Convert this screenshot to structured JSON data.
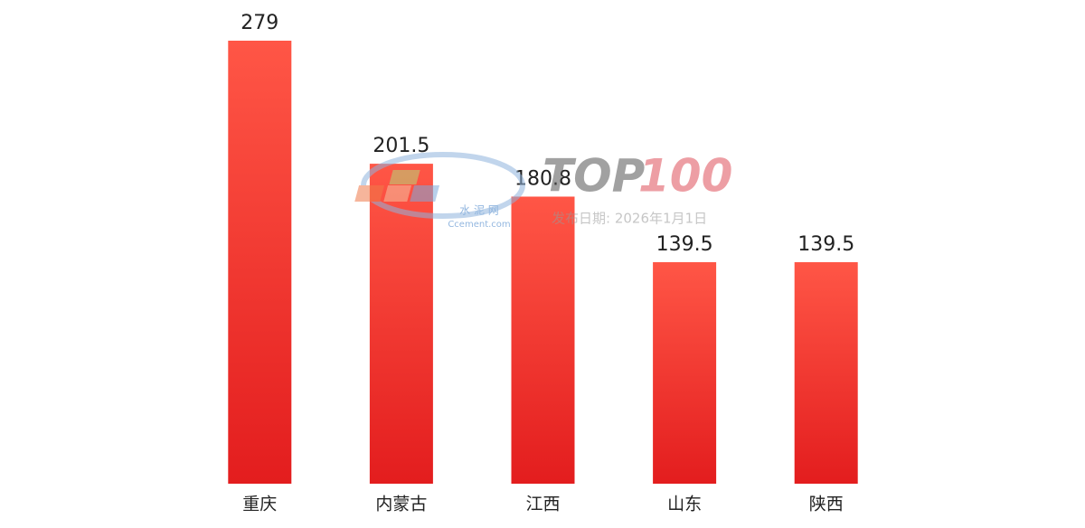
{
  "chart_data": {
    "type": "bar",
    "categories": [
      "重庆",
      "内蒙古",
      "江西",
      "山东",
      "陕西"
    ],
    "values": [
      279,
      201.5,
      180.8,
      139.5,
      139.5
    ],
    "color": "#ff5646",
    "color_bottom": "#e31d1e",
    "watermark": {
      "logo_text": "水 泥 网",
      "logo_site": "Ccement.com",
      "top": "TOP",
      "hundred": "100",
      "date": "发布日期: 2026年1月1日"
    }
  }
}
